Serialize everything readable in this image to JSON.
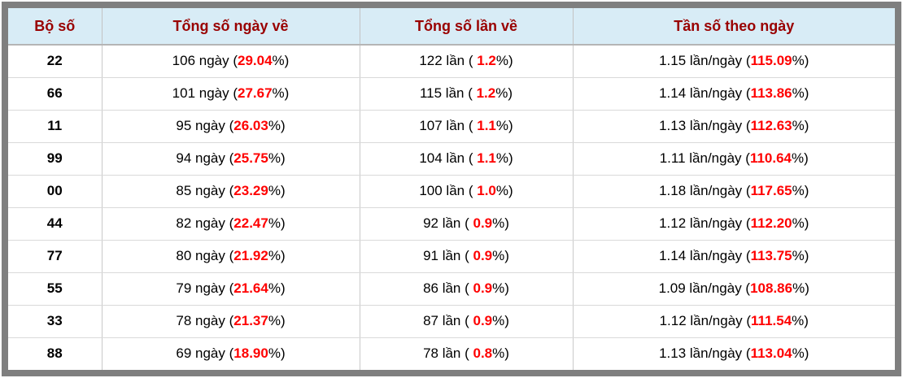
{
  "colors": {
    "frame": "#7f7f7f",
    "header_bg": "#d8ecf6",
    "header_text": "#990000",
    "highlight_red": "#ff0000",
    "body_text": "#000000"
  },
  "table": {
    "columns": [
      {
        "label": "Bộ số"
      },
      {
        "label": "Tổng số ngày về"
      },
      {
        "label": "Tổng số lần về"
      },
      {
        "label": "Tần số theo ngày"
      }
    ],
    "rows": [
      {
        "pair": "22",
        "days_pre": "106 ngày (",
        "days_pct": "29.04",
        "days_post": "%)",
        "times_pre": "122 lần ( ",
        "times_pct": "1.2",
        "times_post": "%)",
        "freq_pre": "1.15 lần/ngày (",
        "freq_pct": "115.09",
        "freq_post": "%)"
      },
      {
        "pair": "66",
        "days_pre": "101 ngày (",
        "days_pct": "27.67",
        "days_post": "%)",
        "times_pre": "115 lần ( ",
        "times_pct": "1.2",
        "times_post": "%)",
        "freq_pre": "1.14 lần/ngày (",
        "freq_pct": "113.86",
        "freq_post": "%)"
      },
      {
        "pair": "11",
        "days_pre": "95 ngày (",
        "days_pct": "26.03",
        "days_post": "%)",
        "times_pre": "107 lần ( ",
        "times_pct": "1.1",
        "times_post": "%)",
        "freq_pre": "1.13 lần/ngày (",
        "freq_pct": "112.63",
        "freq_post": "%)"
      },
      {
        "pair": "99",
        "days_pre": "94 ngày (",
        "days_pct": "25.75",
        "days_post": "%)",
        "times_pre": "104 lần ( ",
        "times_pct": "1.1",
        "times_post": "%)",
        "freq_pre": "1.11 lần/ngày (",
        "freq_pct": "110.64",
        "freq_post": "%)"
      },
      {
        "pair": "00",
        "days_pre": "85 ngày (",
        "days_pct": "23.29",
        "days_post": "%)",
        "times_pre": "100 lần ( ",
        "times_pct": "1.0",
        "times_post": "%)",
        "freq_pre": "1.18 lần/ngày (",
        "freq_pct": "117.65",
        "freq_post": "%)"
      },
      {
        "pair": "44",
        "days_pre": "82 ngày (",
        "days_pct": "22.47",
        "days_post": "%)",
        "times_pre": "92 lần ( ",
        "times_pct": "0.9",
        "times_post": "%)",
        "freq_pre": "1.12 lần/ngày (",
        "freq_pct": "112.20",
        "freq_post": "%)"
      },
      {
        "pair": "77",
        "days_pre": "80 ngày (",
        "days_pct": "21.92",
        "days_post": "%)",
        "times_pre": "91 lần ( ",
        "times_pct": "0.9",
        "times_post": "%)",
        "freq_pre": "1.14 lần/ngày (",
        "freq_pct": "113.75",
        "freq_post": "%)"
      },
      {
        "pair": "55",
        "days_pre": "79 ngày (",
        "days_pct": "21.64",
        "days_post": "%)",
        "times_pre": "86 lần ( ",
        "times_pct": "0.9",
        "times_post": "%)",
        "freq_pre": "1.09 lần/ngày (",
        "freq_pct": "108.86",
        "freq_post": "%)"
      },
      {
        "pair": "33",
        "days_pre": "78 ngày (",
        "days_pct": "21.37",
        "days_post": "%)",
        "times_pre": "87 lần ( ",
        "times_pct": "0.9",
        "times_post": "%)",
        "freq_pre": "1.12 lần/ngày (",
        "freq_pct": "111.54",
        "freq_post": "%)"
      },
      {
        "pair": "88",
        "days_pre": "69 ngày (",
        "days_pct": "18.90",
        "days_post": "%)",
        "times_pre": "78 lần ( ",
        "times_pct": "0.8",
        "times_post": "%)",
        "freq_pre": "1.13 lần/ngày (",
        "freq_pct": "113.04",
        "freq_post": "%)"
      }
    ]
  }
}
